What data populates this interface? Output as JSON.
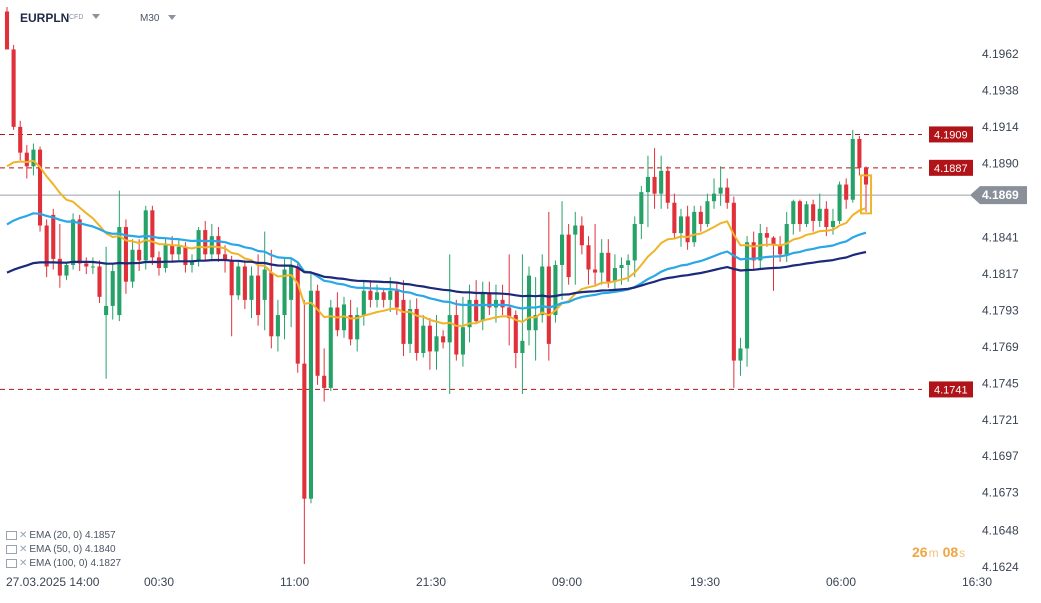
{
  "header": {
    "symbol": "EURPLN",
    "instrument_type": "CFD",
    "timeframe": "M30"
  },
  "indicators": [
    {
      "label": "EMA (20, 0)",
      "value": "4.1857",
      "color": "#f0b429"
    },
    {
      "label": "EMA (50, 0)",
      "value": "4.1840",
      "color": "#2aa7e6"
    },
    {
      "label": "EMA (100, 0)",
      "value": "4.1827",
      "color": "#1b2a7a"
    }
  ],
  "countdown": {
    "minutes": "26",
    "minutes_unit": "m",
    "seconds": "08",
    "seconds_unit": "s"
  },
  "chart_data": {
    "type": "candlestick",
    "y_ticks": [
      "4.1962",
      "4.1938",
      "4.1914",
      "4.1890",
      "4.1841",
      "4.1817",
      "4.1793",
      "4.1769",
      "4.1745",
      "4.1721",
      "4.1697",
      "4.1673",
      "4.1648",
      "4.1624"
    ],
    "x_ticks": [
      "27.03.2025  14:00",
      "00:30",
      "11:00",
      "21:30",
      "09:00",
      "19:30",
      "06:00",
      "16:30"
    ],
    "ylim": [
      4.1614,
      4.2001
    ],
    "current_price": {
      "value": 4.1869,
      "label": "4.1869"
    },
    "levels": [
      {
        "value": 4.1909,
        "label": "4.1909"
      },
      {
        "value": 4.1887,
        "label": "4.1887"
      },
      {
        "value": 4.1741,
        "label": "4.1741"
      }
    ],
    "up_color": "#26a269",
    "down_color": "#e0313b",
    "level_color": "#b01419",
    "candles": [
      [
        4.199,
        4.1993,
        4.1965,
        4.1965
      ],
      [
        4.1965,
        4.1968,
        4.1912,
        4.1914
      ],
      [
        4.1914,
        4.1918,
        4.1892,
        4.1897
      ],
      [
        4.1897,
        4.1902,
        4.188,
        4.1888
      ],
      [
        4.1888,
        4.1903,
        4.1882,
        4.1899
      ],
      [
        4.1899,
        4.1901,
        4.1845,
        4.1849
      ],
      [
        4.1849,
        4.1853,
        4.1815,
        4.1822
      ],
      [
        4.1856,
        4.186,
        4.182,
        4.1827
      ],
      [
        4.1827,
        4.185,
        4.1808,
        4.1816
      ],
      [
        4.1816,
        4.1825,
        4.1813,
        4.1823
      ],
      [
        4.1823,
        4.1857,
        4.182,
        4.1853
      ],
      [
        4.1853,
        4.1856,
        4.1819,
        4.1824
      ],
      [
        4.1824,
        4.1828,
        4.1817,
        4.1822
      ],
      [
        4.1822,
        4.1828,
        4.1817,
        4.1822
      ],
      [
        4.1822,
        4.1826,
        4.1798,
        4.1802
      ],
      [
        4.179,
        4.1835,
        4.1748,
        4.1796
      ],
      [
        4.1796,
        4.1824,
        4.1787,
        4.1819
      ],
      [
        4.179,
        4.1872,
        4.1786,
        4.1848
      ],
      [
        4.1848,
        4.1853,
        4.1804,
        4.1812
      ],
      [
        4.1812,
        4.184,
        4.1808,
        4.1833
      ],
      [
        4.1833,
        4.184,
        4.1819,
        4.1826
      ],
      [
        4.1826,
        4.1862,
        4.182,
        4.1859
      ],
      [
        4.1859,
        4.1862,
        4.1823,
        4.1828
      ],
      [
        4.1828,
        4.1832,
        4.1816,
        4.1821
      ],
      [
        4.1821,
        4.1841,
        4.1818,
        4.1836
      ],
      [
        4.1836,
        4.1842,
        4.1825,
        4.183
      ],
      [
        4.183,
        4.184,
        4.1826,
        4.1835
      ],
      [
        4.1835,
        4.1838,
        4.1818,
        4.1823
      ],
      [
        4.1823,
        4.183,
        4.1818,
        4.1826
      ],
      [
        4.1826,
        4.1848,
        4.1822,
        4.1846
      ],
      [
        4.1846,
        4.1852,
        4.1826,
        4.183
      ],
      [
        4.183,
        4.185,
        4.1826,
        4.1842
      ],
      [
        4.1842,
        4.1848,
        4.1825,
        4.183
      ],
      [
        4.183,
        4.1836,
        4.1818,
        4.1826
      ],
      [
        4.1826,
        4.1829,
        4.1776,
        4.1803
      ],
      [
        4.1803,
        4.1825,
        4.18,
        4.1822
      ],
      [
        4.1822,
        4.1826,
        4.1794,
        4.18
      ],
      [
        4.18,
        4.1822,
        4.1788,
        4.1816
      ],
      [
        4.1816,
        4.183,
        4.1783,
        4.179
      ],
      [
        4.18,
        4.1845,
        4.178,
        4.182
      ],
      [
        4.1818,
        4.1833,
        4.1768,
        4.1776
      ],
      [
        4.1776,
        4.18,
        4.1766,
        4.179
      ],
      [
        4.179,
        4.1827,
        4.1774,
        4.182
      ],
      [
        4.18,
        4.1827,
        4.1782,
        4.1822
      ],
      [
        4.1822,
        4.1825,
        4.1752,
        4.1758
      ],
      [
        4.1758,
        4.18,
        4.1626,
        4.1669
      ],
      [
        4.1669,
        4.1818,
        4.1666,
        4.1806
      ],
      [
        4.1806,
        4.181,
        4.1744,
        4.175
      ],
      [
        4.175,
        4.1768,
        4.1733,
        4.1742
      ],
      [
        4.1742,
        4.18,
        4.174,
        4.1795
      ],
      [
        4.1795,
        4.1805,
        4.1776,
        4.178
      ],
      [
        4.178,
        4.1802,
        4.1775,
        4.1797
      ],
      [
        4.179,
        4.18,
        4.177,
        4.1774
      ],
      [
        4.1774,
        4.1795,
        4.1766,
        4.179
      ],
      [
        4.179,
        4.1812,
        4.1783,
        4.1806
      ],
      [
        4.1806,
        4.1813,
        4.1795,
        4.18
      ],
      [
        4.18,
        4.181,
        4.1795,
        4.1805
      ],
      [
        4.1805,
        4.1808,
        4.1795,
        4.18
      ],
      [
        4.18,
        4.1815,
        4.1792,
        4.1806
      ],
      [
        4.1806,
        4.1812,
        4.179,
        4.1795
      ],
      [
        4.18,
        4.1813,
        4.1763,
        4.1771
      ],
      [
        4.1771,
        4.18,
        4.1765,
        4.1794
      ],
      [
        4.1794,
        4.1801,
        4.176,
        4.1765
      ],
      [
        4.1765,
        4.179,
        4.1762,
        4.1783
      ],
      [
        4.1783,
        4.1788,
        4.1754,
        4.1766
      ],
      [
        4.1766,
        4.179,
        4.1754,
        4.1776
      ],
      [
        4.1776,
        4.178,
        4.1768,
        4.1772
      ],
      [
        4.1772,
        4.183,
        4.1738,
        4.179
      ],
      [
        4.179,
        4.18,
        4.176,
        4.1764
      ],
      [
        4.1764,
        4.1802,
        4.1756,
        4.1782
      ],
      [
        4.1782,
        4.181,
        4.1772,
        4.18
      ],
      [
        4.18,
        4.1813,
        4.1785,
        4.1786
      ],
      [
        4.1786,
        4.1812,
        4.178,
        4.1805
      ],
      [
        4.1805,
        4.1812,
        4.179,
        4.1795
      ],
      [
        4.1795,
        4.181,
        4.1785,
        4.18
      ],
      [
        4.18,
        4.181,
        4.179,
        4.1795
      ],
      [
        4.1795,
        4.183,
        4.177,
        4.1788
      ],
      [
        4.179,
        4.1793,
        4.1755,
        4.1765
      ],
      [
        4.1765,
        4.183,
        4.1738,
        4.1773
      ],
      [
        4.178,
        4.1822,
        4.177,
        4.1816
      ],
      [
        4.178,
        4.1815,
        4.176,
        4.179
      ],
      [
        4.179,
        4.183,
        4.1785,
        4.1822
      ],
      [
        4.1822,
        4.1858,
        4.176,
        4.1771
      ],
      [
        4.179,
        4.1826,
        4.1785,
        4.1823
      ],
      [
        4.1823,
        4.1865,
        4.18,
        4.1843
      ],
      [
        4.1843,
        4.185,
        4.181,
        4.1815
      ],
      [
        4.1843,
        4.1858,
        4.181,
        4.1849
      ],
      [
        4.1849,
        4.1855,
        4.183,
        4.1836
      ],
      [
        4.1836,
        4.1842,
        4.181,
        4.182
      ],
      [
        4.182,
        4.185,
        4.181,
        4.1818
      ],
      [
        4.1818,
        4.184,
        4.181,
        4.1831
      ],
      [
        4.1831,
        4.184,
        4.1808,
        4.1812
      ],
      [
        4.1812,
        4.183,
        4.1805,
        4.1821
      ],
      [
        4.1821,
        4.1828,
        4.181,
        4.1823
      ],
      [
        4.1823,
        4.183,
        4.1812,
        4.1826
      ],
      [
        4.1826,
        4.1855,
        4.1815,
        4.185
      ],
      [
        4.185,
        4.1875,
        4.184,
        4.1871
      ],
      [
        4.1871,
        4.1895,
        4.1848,
        4.1881
      ],
      [
        4.1881,
        4.19,
        4.186,
        4.187
      ],
      [
        4.187,
        4.1895,
        4.186,
        4.1885
      ],
      [
        4.1885,
        4.1888,
        4.186,
        4.1864
      ],
      [
        4.1864,
        4.187,
        4.184,
        4.1844
      ],
      [
        4.1844,
        4.186,
        4.1835,
        4.1855
      ],
      [
        4.1855,
        4.1862,
        4.1833,
        4.1838
      ],
      [
        4.1838,
        4.1862,
        4.1835,
        4.1858
      ],
      [
        4.1858,
        4.1862,
        4.1845,
        4.185
      ],
      [
        4.185,
        4.187,
        4.1848,
        4.1865
      ],
      [
        4.1865,
        4.188,
        4.186,
        4.187
      ],
      [
        4.187,
        4.1888,
        4.1862,
        4.1874
      ],
      [
        4.1874,
        4.188,
        4.186,
        4.1864
      ],
      [
        4.1864,
        4.1868,
        4.1742,
        4.176
      ],
      [
        4.176,
        4.1775,
        4.175,
        4.1768
      ],
      [
        4.1768,
        4.1842,
        4.1756,
        4.1838
      ],
      [
        4.1838,
        4.1845,
        4.182,
        4.1826
      ],
      [
        4.1826,
        4.185,
        4.182,
        4.1844
      ],
      [
        4.1844,
        4.1848,
        4.1835,
        4.1841
      ],
      [
        4.1841,
        4.1842,
        4.1806,
        4.1836
      ],
      [
        4.1836,
        4.1842,
        4.1825,
        4.183
      ],
      [
        4.183,
        4.1858,
        4.1825,
        4.185
      ],
      [
        4.185,
        4.1866,
        4.1843,
        4.1865
      ],
      [
        4.1865,
        4.1866,
        4.1845,
        4.185
      ],
      [
        4.185,
        4.1865,
        4.1848,
        4.1863
      ],
      [
        4.1863,
        4.1866,
        4.1845,
        4.1852
      ],
      [
        4.1852,
        4.187,
        4.1848,
        4.186
      ],
      [
        4.186,
        4.1865,
        4.1842,
        4.1848
      ],
      [
        4.1848,
        4.186,
        4.1843,
        4.1852
      ],
      [
        4.1852,
        4.1878,
        4.185,
        4.1876
      ],
      [
        4.1876,
        4.188,
        4.186,
        4.1866
      ],
      [
        4.1866,
        4.1912,
        4.1864,
        4.1906
      ],
      [
        4.1906,
        4.1908,
        4.1882,
        4.1887
      ],
      [
        4.1887,
        4.1888,
        4.1858,
        4.1876
      ]
    ]
  }
}
